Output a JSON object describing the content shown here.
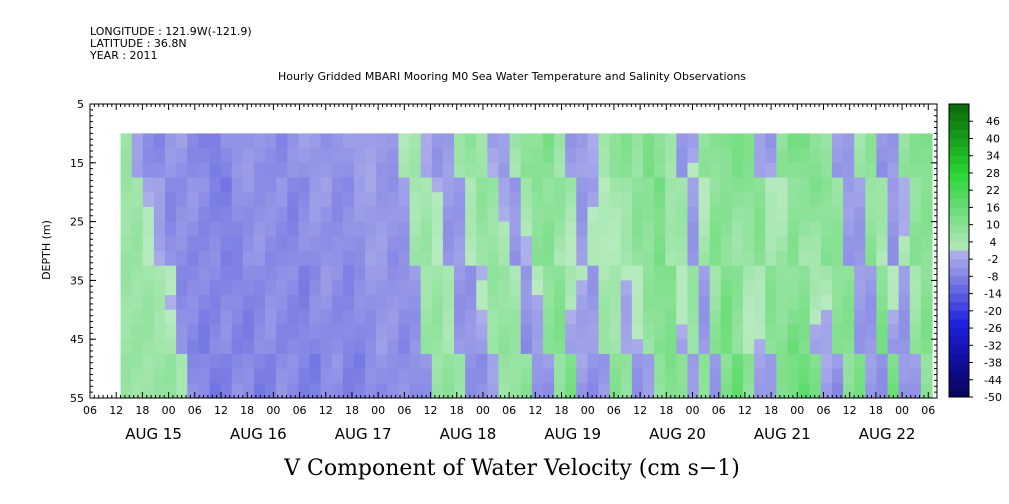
{
  "header": {
    "longitude": "LONGITUDE : 121.9W(-121.9)",
    "latitude": "LATITUDE : 36.8N",
    "year": "YEAR : 2011"
  },
  "chart_data": {
    "type": "heatmap",
    "title": "Hourly Gridded MBARI Mooring M0 Sea Water Temperature and Salinity Observations",
    "xlabel": "V Component of Water Velocity (cm s−1)",
    "ylabel": "DEPTH (m)",
    "ylim": [
      5,
      55
    ],
    "y_ticks": [
      "5",
      "15",
      "25",
      "35",
      "45",
      "55"
    ],
    "data_depth_range": [
      10,
      55
    ],
    "x_hour_ticks": [
      "06",
      "12",
      "18",
      "00",
      "06",
      "12",
      "18",
      "00",
      "06",
      "12",
      "18",
      "00",
      "06",
      "12",
      "18",
      "00",
      "06",
      "12",
      "18",
      "00",
      "06",
      "12",
      "18",
      "00",
      "06",
      "12",
      "18",
      "00",
      "06",
      "12",
      "18",
      "00",
      "06"
    ],
    "x_day_labels": [
      "AUG 15",
      "AUG 16",
      "AUG 17",
      "AUG 18",
      "AUG 19",
      "AUG 20",
      "AUG 21",
      "AUG 22"
    ],
    "data_time_start": "AUG 14 13:00",
    "data_time_end": "AUG 22 08:00",
    "colorbar": {
      "labels": [
        "46",
        "40",
        "34",
        "28",
        "22",
        "16",
        "10",
        "4",
        "-2",
        "-8",
        "-14",
        "-20",
        "-26",
        "-32",
        "-38",
        "-44",
        "-50"
      ],
      "min": -50,
      "max": 52,
      "step": 3
    },
    "approx_column_values_near_surface": [
      6,
      -4,
      -6,
      -7,
      -5,
      -4,
      -6,
      -8,
      -10,
      -6,
      -4,
      -5,
      -6,
      -5,
      -7,
      -6,
      -4,
      -3,
      -5,
      -6,
      -4,
      -2,
      -3,
      -5,
      -4,
      3,
      4,
      -2,
      -4,
      -3,
      5,
      8,
      6,
      -3,
      -4,
      6,
      10,
      8,
      12,
      7,
      -4,
      -5,
      -2,
      6,
      9,
      10,
      7,
      14,
      9,
      4,
      -4,
      -2,
      7,
      9,
      12,
      14,
      10,
      -3,
      -4,
      8,
      12,
      14,
      10,
      6,
      -4,
      -3,
      5,
      9,
      -5,
      -4,
      7,
      10,
      12
    ],
    "approx_column_values_at_depth": [
      6,
      8,
      5,
      -6,
      -8,
      -10,
      -8,
      -6,
      -7,
      -9,
      -8,
      -6,
      -7,
      -8,
      -9,
      -7,
      -6,
      -8,
      -9,
      -7,
      -6,
      -5,
      -6,
      -7,
      -5,
      7,
      8,
      6,
      -5,
      -6,
      -4,
      6,
      8,
      9,
      -6,
      -5,
      8,
      12,
      -5,
      -6,
      -4,
      10,
      8,
      -5,
      -4,
      7,
      12,
      10,
      -5,
      8,
      -4,
      12,
      16,
      9,
      -3,
      -5,
      10,
      14,
      18,
      12,
      -4,
      -6,
      9,
      12,
      -4,
      -5,
      14,
      -6,
      -4,
      10,
      12,
      9,
      6
    ]
  }
}
